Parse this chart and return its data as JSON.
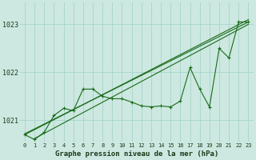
{
  "title": "Graphe pression niveau de la mer (hPa)",
  "ylabel_ticks": [
    1021,
    1022,
    1023
  ],
  "xlim": [
    -0.5,
    23.5
  ],
  "ylim": [
    1020.55,
    1023.45
  ],
  "bg_color": "#cce8e0",
  "grid_color": "#a8d4ca",
  "line_color": "#1a6b1a",
  "x_labels": [
    "0",
    "1",
    "2",
    "3",
    "4",
    "5",
    "6",
    "7",
    "8",
    "9",
    "10",
    "11",
    "12",
    "13",
    "14",
    "15",
    "16",
    "17",
    "18",
    "19",
    "20",
    "21",
    "22",
    "23"
  ],
  "pressure": [
    1020.7,
    1020.6,
    1020.75,
    1021.1,
    1021.25,
    1021.2,
    1021.65,
    1021.65,
    1021.5,
    1021.45,
    1021.45,
    1021.38,
    1021.3,
    1021.28,
    1021.3,
    1021.28,
    1021.4,
    1022.1,
    1021.65,
    1021.28,
    1022.5,
    1022.3,
    1023.05,
    1023.05
  ],
  "trend_lines": [
    {
      "x0": 0,
      "y0": 1020.7,
      "x1": 23,
      "y1": 1023.1
    },
    {
      "x0": 0,
      "y0": 1020.72,
      "x1": 23,
      "y1": 1023.05
    },
    {
      "x0": 1,
      "y0": 1020.62,
      "x1": 23,
      "y1": 1023.0
    }
  ],
  "label_fontsize": 5.0,
  "ylabel_fontsize": 6.0,
  "title_fontsize": 6.5
}
